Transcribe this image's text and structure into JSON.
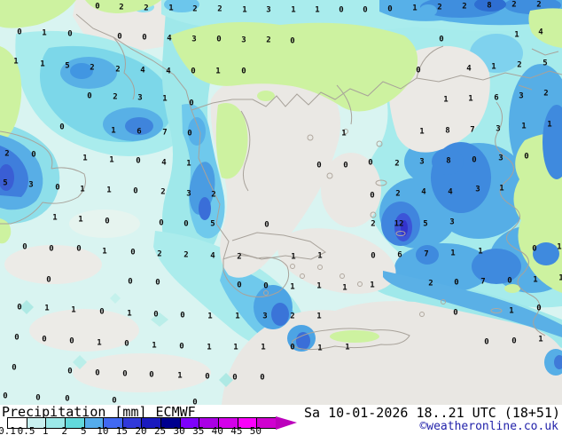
{
  "legend": {
    "product": "Precipitation",
    "unit": "[mm]",
    "model": "ECMWF",
    "ticks": [
      "0.1",
      "0.5",
      "1",
      "2",
      "5",
      "10",
      "15",
      "20",
      "25",
      "30",
      "35",
      "40",
      "45",
      "50"
    ],
    "colors": [
      "#ffffff",
      "#c9f1f1",
      "#9ce9e9",
      "#62d9dc",
      "#55acec",
      "#4169f2",
      "#3139da",
      "#1a1abe",
      "#00008e",
      "#7e00fa",
      "#aa00e6",
      "#d400ea",
      "#fa00fa",
      "#d000d0"
    ],
    "arrow_color": "#bc00bc"
  },
  "footer": {
    "datetime": "Sa 10-01-2026 18..21 UTC (18+51)",
    "copyright": "©weatheronline.co.uk",
    "copyright_color": "#2222aa"
  },
  "map": {
    "palette": {
      "sea_dry": "#e9e7e3",
      "land_dry": "#cdf2a0",
      "coast": "#a8a29a",
      "precip_trace": "#d9f4f1",
      "precip_light": "#a6ebec",
      "precip_moderate": "#56aee6",
      "precip_heavy": "#3f8ade",
      "precip_intense": "#3c55d8"
    },
    "values": [
      [
        107,
        4,
        "0"
      ],
      [
        134,
        5,
        "2"
      ],
      [
        162,
        6,
        "2"
      ],
      [
        190,
        6,
        "1"
      ],
      [
        217,
        7,
        "2"
      ],
      [
        245,
        7,
        "2"
      ],
      [
        273,
        8,
        "1"
      ],
      [
        300,
        8,
        "3"
      ],
      [
        328,
        8,
        "1"
      ],
      [
        355,
        8,
        "1"
      ],
      [
        382,
        8,
        "0"
      ],
      [
        409,
        8,
        "0"
      ],
      [
        437,
        7,
        "0"
      ],
      [
        465,
        6,
        "1"
      ],
      [
        493,
        5,
        "2"
      ],
      [
        521,
        4,
        "2"
      ],
      [
        549,
        3,
        "8"
      ],
      [
        577,
        2,
        "2"
      ],
      [
        605,
        2,
        "2"
      ],
      [
        19,
        33,
        "0"
      ],
      [
        47,
        34,
        "1"
      ],
      [
        76,
        35,
        "0"
      ],
      [
        132,
        38,
        "0"
      ],
      [
        160,
        39,
        "0"
      ],
      [
        188,
        40,
        "4"
      ],
      [
        216,
        41,
        "3"
      ],
      [
        244,
        41,
        "0"
      ],
      [
        272,
        42,
        "3"
      ],
      [
        300,
        42,
        "2"
      ],
      [
        327,
        43,
        "0"
      ],
      [
        495,
        41,
        "0"
      ],
      [
        580,
        36,
        "1"
      ],
      [
        607,
        33,
        "4"
      ],
      [
        15,
        66,
        "1"
      ],
      [
        45,
        69,
        "1"
      ],
      [
        73,
        71,
        "5"
      ],
      [
        101,
        73,
        "2"
      ],
      [
        130,
        75,
        "2"
      ],
      [
        158,
        76,
        "4"
      ],
      [
        187,
        77,
        "4"
      ],
      [
        215,
        77,
        "0"
      ],
      [
        243,
        77,
        "1"
      ],
      [
        272,
        77,
        "0"
      ],
      [
        469,
        76,
        "0"
      ],
      [
        526,
        74,
        "4"
      ],
      [
        554,
        72,
        "1"
      ],
      [
        583,
        70,
        "2"
      ],
      [
        612,
        68,
        "5"
      ],
      [
        98,
        105,
        "0"
      ],
      [
        127,
        106,
        "2"
      ],
      [
        155,
        107,
        "3"
      ],
      [
        183,
        108,
        "1"
      ],
      [
        213,
        113,
        "0"
      ],
      [
        500,
        109,
        "1"
      ],
      [
        528,
        108,
        "1"
      ],
      [
        557,
        107,
        "6"
      ],
      [
        585,
        105,
        "3"
      ],
      [
        613,
        102,
        "2"
      ],
      [
        67,
        140,
        "0"
      ],
      [
        125,
        144,
        "1"
      ],
      [
        154,
        145,
        "6"
      ],
      [
        183,
        146,
        "7"
      ],
      [
        211,
        147,
        "0"
      ],
      [
        385,
        147,
        "1"
      ],
      [
        473,
        145,
        "1"
      ],
      [
        502,
        144,
        "8"
      ],
      [
        530,
        143,
        "7"
      ],
      [
        559,
        142,
        "3"
      ],
      [
        588,
        139,
        "1"
      ],
      [
        617,
        137,
        "1"
      ],
      [
        5,
        170,
        "2"
      ],
      [
        35,
        171,
        "0"
      ],
      [
        93,
        175,
        "1"
      ],
      [
        123,
        177,
        "1"
      ],
      [
        153,
        178,
        "0"
      ],
      [
        182,
        180,
        "4"
      ],
      [
        210,
        181,
        "1"
      ],
      [
        357,
        183,
        "0"
      ],
      [
        387,
        183,
        "0"
      ],
      [
        415,
        180,
        "0"
      ],
      [
        445,
        181,
        "2"
      ],
      [
        473,
        179,
        "3"
      ],
      [
        503,
        178,
        "8"
      ],
      [
        532,
        177,
        "0"
      ],
      [
        562,
        175,
        "3"
      ],
      [
        591,
        173,
        "0"
      ],
      [
        3,
        203,
        "5"
      ],
      [
        32,
        205,
        "3"
      ],
      [
        62,
        208,
        "0"
      ],
      [
        90,
        210,
        "1"
      ],
      [
        120,
        211,
        "1"
      ],
      [
        150,
        212,
        "0"
      ],
      [
        181,
        213,
        "2"
      ],
      [
        210,
        215,
        "3"
      ],
      [
        238,
        216,
        "2"
      ],
      [
        417,
        217,
        "0"
      ],
      [
        446,
        215,
        "2"
      ],
      [
        475,
        213,
        "4"
      ],
      [
        505,
        213,
        "4"
      ],
      [
        536,
        210,
        "3"
      ],
      [
        563,
        209,
        "1"
      ],
      [
        59,
        242,
        "1"
      ],
      [
        88,
        244,
        "1"
      ],
      [
        118,
        246,
        "0"
      ],
      [
        179,
        248,
        "0"
      ],
      [
        207,
        249,
        "0"
      ],
      [
        237,
        249,
        "5"
      ],
      [
        298,
        250,
        "0"
      ],
      [
        418,
        249,
        "2"
      ],
      [
        447,
        249,
        "12"
      ],
      [
        477,
        249,
        "5"
      ],
      [
        507,
        247,
        "3"
      ],
      [
        25,
        275,
        "0"
      ],
      [
        55,
        277,
        "0"
      ],
      [
        86,
        277,
        "0"
      ],
      [
        115,
        280,
        "1"
      ],
      [
        147,
        281,
        "0"
      ],
      [
        177,
        283,
        "2"
      ],
      [
        207,
        284,
        "2"
      ],
      [
        237,
        285,
        "4"
      ],
      [
        267,
        286,
        "2"
      ],
      [
        328,
        286,
        "1"
      ],
      [
        358,
        285,
        "1"
      ],
      [
        418,
        285,
        "0"
      ],
      [
        448,
        284,
        "6"
      ],
      [
        478,
        283,
        "7"
      ],
      [
        508,
        282,
        "1"
      ],
      [
        539,
        280,
        "1"
      ],
      [
        600,
        277,
        "0"
      ],
      [
        628,
        275,
        "1"
      ],
      [
        52,
        312,
        "0"
      ],
      [
        144,
        314,
        "0"
      ],
      [
        175,
        315,
        "0"
      ],
      [
        267,
        318,
        "0"
      ],
      [
        297,
        319,
        "0"
      ],
      [
        327,
        320,
        "1"
      ],
      [
        357,
        319,
        "1"
      ],
      [
        386,
        321,
        "1"
      ],
      [
        417,
        318,
        "1"
      ],
      [
        483,
        316,
        "2"
      ],
      [
        512,
        315,
        "0"
      ],
      [
        542,
        314,
        "7"
      ],
      [
        572,
        313,
        "0"
      ],
      [
        601,
        312,
        "1"
      ],
      [
        630,
        310,
        "1"
      ],
      [
        19,
        343,
        "0"
      ],
      [
        50,
        344,
        "1"
      ],
      [
        80,
        346,
        "1"
      ],
      [
        112,
        348,
        "0"
      ],
      [
        143,
        350,
        "1"
      ],
      [
        173,
        351,
        "0"
      ],
      [
        203,
        352,
        "0"
      ],
      [
        234,
        353,
        "1"
      ],
      [
        265,
        353,
        "1"
      ],
      [
        296,
        353,
        "3"
      ],
      [
        327,
        353,
        "2"
      ],
      [
        357,
        353,
        "1"
      ],
      [
        511,
        349,
        "0"
      ],
      [
        574,
        347,
        "1"
      ],
      [
        605,
        344,
        "0"
      ],
      [
        16,
        377,
        "0"
      ],
      [
        47,
        379,
        "0"
      ],
      [
        78,
        381,
        "0"
      ],
      [
        109,
        383,
        "1"
      ],
      [
        140,
        384,
        "0"
      ],
      [
        171,
        386,
        "1"
      ],
      [
        202,
        387,
        "0"
      ],
      [
        233,
        388,
        "1"
      ],
      [
        263,
        388,
        "1"
      ],
      [
        294,
        388,
        "1"
      ],
      [
        327,
        388,
        "0"
      ],
      [
        358,
        389,
        "1"
      ],
      [
        389,
        388,
        "1"
      ],
      [
        546,
        382,
        "0"
      ],
      [
        577,
        381,
        "0"
      ],
      [
        607,
        379,
        "1"
      ],
      [
        13,
        411,
        "0"
      ],
      [
        76,
        415,
        "0"
      ],
      [
        107,
        417,
        "0"
      ],
      [
        138,
        418,
        "0"
      ],
      [
        168,
        419,
        "0"
      ],
      [
        200,
        420,
        "1"
      ],
      [
        231,
        421,
        "0"
      ],
      [
        262,
        422,
        "0"
      ],
      [
        293,
        422,
        "0"
      ],
      [
        3,
        443,
        "0"
      ],
      [
        40,
        445,
        "0"
      ],
      [
        73,
        446,
        "0"
      ],
      [
        126,
        448,
        "0"
      ],
      [
        217,
        450,
        "0"
      ]
    ]
  }
}
